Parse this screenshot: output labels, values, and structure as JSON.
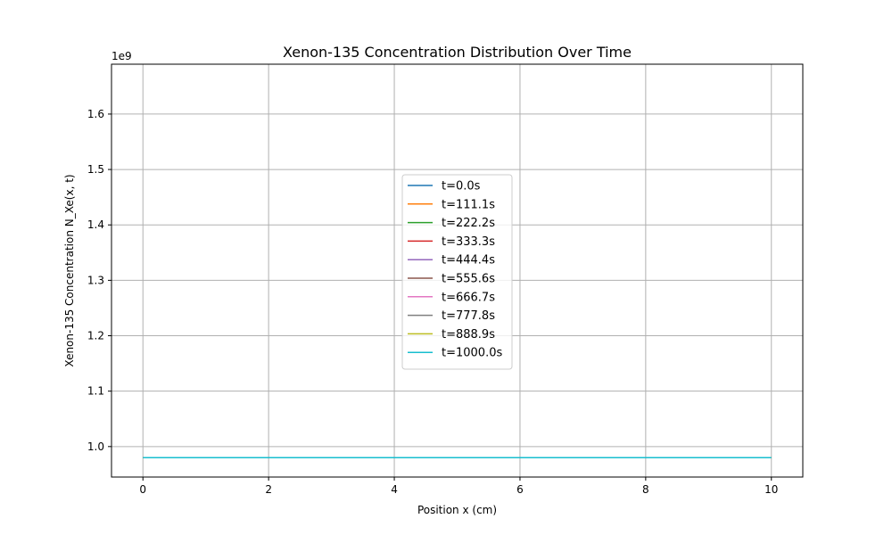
{
  "chart_data": {
    "type": "line",
    "title": "Xenon-135 Concentration Distribution Over Time",
    "xlabel": "Position x (cm)",
    "ylabel": "Xenon-135 Concentration N_Xe(x, t)",
    "y_offset_label": "1e9",
    "xlim": [
      -0.5,
      10.5
    ],
    "ylim": [
      0.945,
      1.69
    ],
    "x_ticks": [
      0,
      2,
      4,
      6,
      8,
      10
    ],
    "x_tick_labels": [
      "0",
      "2",
      "4",
      "6",
      "8",
      "10"
    ],
    "y_ticks": [
      1.0,
      1.1,
      1.2,
      1.3,
      1.4,
      1.5,
      1.6
    ],
    "y_tick_labels": [
      "1.0",
      "1.1",
      "1.2",
      "1.3",
      "1.4",
      "1.5",
      "1.6"
    ],
    "grid": true,
    "legend_position": "center",
    "series": [
      {
        "name": "t=0.0s",
        "color": "#1f77b4",
        "x": [
          0,
          10
        ],
        "y": [
          0.98,
          0.98
        ]
      },
      {
        "name": "t=111.1s",
        "color": "#ff7f0e",
        "x": [
          0,
          10
        ],
        "y": [
          0.98,
          0.98
        ]
      },
      {
        "name": "t=222.2s",
        "color": "#2ca02c",
        "x": [
          0,
          10
        ],
        "y": [
          0.98,
          0.98
        ]
      },
      {
        "name": "t=333.3s",
        "color": "#d62728",
        "x": [
          0,
          10
        ],
        "y": [
          0.98,
          0.98
        ]
      },
      {
        "name": "t=444.4s",
        "color": "#9467bd",
        "x": [
          0,
          10
        ],
        "y": [
          0.98,
          0.98
        ]
      },
      {
        "name": "t=555.6s",
        "color": "#8c564b",
        "x": [
          0,
          10
        ],
        "y": [
          0.98,
          0.98
        ]
      },
      {
        "name": "t=666.7s",
        "color": "#e377c2",
        "x": [
          0,
          10
        ],
        "y": [
          0.98,
          0.98
        ]
      },
      {
        "name": "t=777.8s",
        "color": "#7f7f7f",
        "x": [
          0,
          10
        ],
        "y": [
          0.98,
          0.98
        ]
      },
      {
        "name": "t=888.9s",
        "color": "#bcbd22",
        "x": [
          0,
          10
        ],
        "y": [
          0.98,
          0.98
        ]
      },
      {
        "name": "t=1000.0s",
        "color": "#17becf",
        "x": [
          0,
          10
        ],
        "y": [
          0.98,
          0.98
        ]
      }
    ]
  }
}
